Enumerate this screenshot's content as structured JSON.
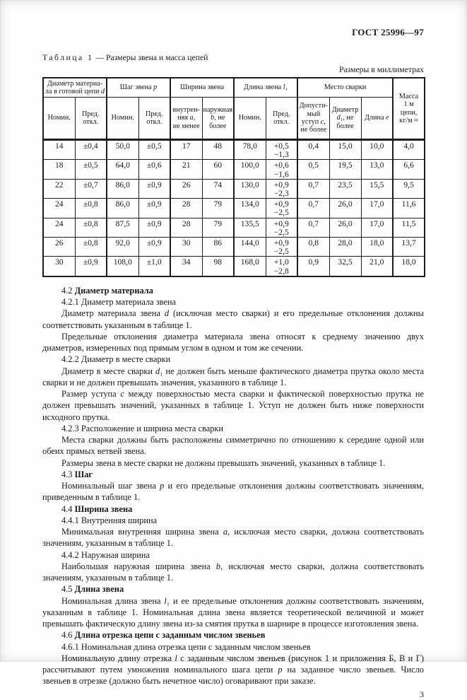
{
  "page": {
    "doc_code": "ГОСТ 25996—97",
    "page_number": "3"
  },
  "table": {
    "caption_label": "Таблица 1",
    "caption_text": " — Размеры звена и масса цепей",
    "units_note": "Размеры в миллиметрах",
    "groups": [
      {
        "label": "Диаметр материа-\nла в готовой цепи *d*",
        "span": 2,
        "tall": false
      },
      {
        "label": "Шаг звена *p*",
        "span": 2,
        "tall": false
      },
      {
        "label": "Ширина звена",
        "span": 2,
        "tall": false
      },
      {
        "label": "Длина звена *l*₁",
        "span": 2,
        "tall": false
      },
      {
        "label": "Место сварки",
        "span": 3,
        "tall": false
      },
      {
        "label": "Масса\n1 м\nцепи,\nкг/м ≈",
        "span": 1,
        "tall": true
      }
    ],
    "subheaders": [
      "Номин.",
      "Пред.\nоткл.",
      "Номин.",
      "Пред.\nоткл.",
      "внутрен-\nняя *a*,\nне менее",
      "наружная\n*b*, не\nболее",
      "Номин.",
      "Пред.\nоткл.",
      "Допусти-\nмый\nуступ *c*,\nне более",
      "Диаметр\n*d*₁, не\nболее",
      "Длина *e*"
    ],
    "rows": [
      [
        "14",
        "±0,4",
        "50,0",
        "±0,5",
        "17",
        "48",
        "78,0",
        "+0,5\n−1,3",
        "0,4",
        "15,0",
        "10,0",
        "4,0"
      ],
      [
        "18",
        "±0,5",
        "64,0",
        "±0,6",
        "21",
        "60",
        "100,0",
        "+0,6\n−1,6",
        "0,5",
        "19,5",
        "13,0",
        "6,6"
      ],
      [
        "22",
        "±0,7",
        "86,0",
        "±0,9",
        "26",
        "74",
        "130,0",
        "+0,9\n−2,3",
        "0,7",
        "23,5",
        "15,5",
        "9,5"
      ],
      [
        "24",
        "±0,8",
        "86,0",
        "±0,9",
        "28",
        "79",
        "134,0",
        "+0,9\n−2,5",
        "0,7",
        "26,0",
        "17,0",
        "11,6"
      ],
      [
        "24",
        "±0,8",
        "87,5",
        "±0,9",
        "28",
        "79",
        "135,5",
        "+0,9\n−2,5",
        "0,7",
        "26,0",
        "17,0",
        "11,5"
      ],
      [
        "26",
        "±0,8",
        "92,0",
        "±0,9",
        "30",
        "86",
        "144,0",
        "+0,9\n−2,5",
        "0,8",
        "28,0",
        "18,0",
        "13,7"
      ],
      [
        "30",
        "±0,9",
        "108,0",
        "±1,0",
        "34",
        "98",
        "168,0",
        "+1,0\n−2,8",
        "0,9",
        "32,5",
        "21,0",
        "18,0"
      ]
    ]
  },
  "content": {
    "paragraphs": [
      "4.2 **Диаметр материала**",
      "4.2.1 Диаметр материала звена",
      "Диаметр материала звена *d* (исключая место сварки) и его предельные отклонения должны соответствовать указанным в таблице 1.",
      "Предельные отклонения диаметра материала звена относят к среднему значению двух диаметров, измеренных под прямым углом в одном и том же сечении.",
      "4.2.2 Диаметр в месте сварки",
      "Диаметр в месте сварки *d*₁ не должен быть меньше фактического диаметра прутка около места сварки и не должен превышать значения, указанного в таблице 1.",
      "Размер уступа *c* между поверхностью места сварки и фактической поверхностью прутка не должен превышать значений, указанных в таблице 1. Уступ не должен быть ниже поверхности исходного прутка.",
      "4.2.3 Расположение и ширина места сварки",
      "Места сварки должны быть расположены симметрично по отношению к середине одной или обеих прямых ветвей звена.",
      "Размеры звена в месте сварки не должны превышать значений, указанных в таблице 1.",
      "4.3 **Шаг**",
      "Номинальный шаг звена *p* и его предельные отклонения должны соответствовать значениям, приведенным в таблице 1.",
      "4.4 **Ширина звена**",
      "4.4.1 Внутренняя ширина",
      "Минимальная внутренняя ширина звена *a*, исключая место сварки, должна соответствовать значениям, указанным в таблице 1.",
      "4.4.2 Наружная ширина",
      "Наибольшая наружная ширина звена *b*, исключая место сварки, должна соответствовать значениям, указанным в таблице 1.",
      "4.5 **Длина звена**",
      "Номинальная длина звена *l*₁ и ее предельные отклонения должны соответствовать значениям, указанным в таблице 1. Номинальная длина звена является теоретической величиной и может превышать фактическую длину звена из-за смятия прутка в шарнире в процессе изготовления звена.",
      "4.6 **Длина отрезка цепи с заданным числом звеньев**",
      "4.6.1 Номинальная длина отрезка цепи с заданным числом звеньев",
      "Номинальную длину отрезка *l* с заданным числом звеньев (рисунок 1 и приложения Б, В и Г) рассчитывают путем умножения номинального шага цепи *p* на заданное число звеньев. Число звеньев в отрезке (должно быть нечетное число) оговаривают при заказе."
    ]
  }
}
